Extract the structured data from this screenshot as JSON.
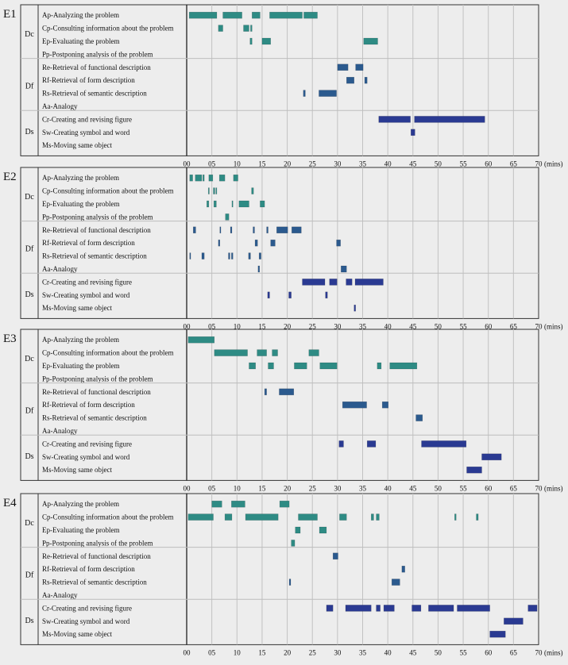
{
  "chart_data": {
    "type": "timeline",
    "xlim": [
      0,
      70
    ],
    "x_ticks": [
      "00",
      "05",
      "10",
      "15",
      "20",
      "25",
      "30",
      "35",
      "40",
      "45",
      "50",
      "55",
      "60",
      "65",
      "70"
    ],
    "x_unit": "(mins)",
    "grid": true,
    "groups": [
      {
        "label": "Dc",
        "rows": [
          "Ap-Analyzing the problem",
          "Cp-Consulting information about the problem",
          "Ep-Evaluating the problem",
          "Pp-Postponing analysis of the problem"
        ]
      },
      {
        "label": "Df",
        "rows": [
          "Re-Retrieval of functional description",
          "Rf-Retrieval of form description",
          "Rs-Retrieval of semantic description",
          "Aa-Analogy"
        ]
      },
      {
        "label": "Ds",
        "rows": [
          "Cr-Creating and revising figure",
          "Sw-Creating symbol and word",
          "Ms-Moving same object"
        ]
      }
    ],
    "colors": {
      "Dc": "#2e8b84",
      "Df": "#2b5a8e",
      "Ds": "#2a3a92"
    },
    "panels": [
      {
        "label": "E1",
        "segments": [
          [
            [
              0.5,
              6
            ],
            [
              7.2,
              11
            ],
            [
              13,
              14.6
            ],
            [
              16.5,
              23
            ],
            [
              23.3,
              26
            ]
          ],
          [
            [
              6.3,
              7.2
            ],
            [
              11.3,
              12.4
            ],
            [
              12.7,
              13
            ]
          ],
          [
            [
              12.6,
              13
            ],
            [
              15,
              16.7
            ],
            [
              35.2,
              38
            ]
          ],
          [],
          [
            [
              30,
              32.1
            ],
            [
              33.6,
              35.1
            ]
          ],
          [
            [
              31.8,
              33.3
            ],
            [
              35.4,
              35.9
            ]
          ],
          [
            [
              23.2,
              23.6
            ],
            [
              26.3,
              29.8
            ]
          ],
          [],
          [
            [
              38.2,
              44.5
            ],
            [
              45.3,
              59.3
            ]
          ],
          [
            [
              44.6,
              45.4
            ]
          ],
          []
        ]
      },
      {
        "label": "E2",
        "segments": [
          [
            [
              0.6,
              1.2
            ],
            [
              1.7,
              3
            ],
            [
              3.2,
              3.5
            ],
            [
              4.4,
              5.2
            ],
            [
              6.5,
              7.6
            ],
            [
              9.3,
              10.2
            ]
          ],
          [
            [
              4.3,
              4.5
            ],
            [
              5.3,
              5.6
            ],
            [
              5.8,
              6
            ],
            [
              12.9,
              13.3
            ]
          ],
          [
            [
              4,
              4.4
            ],
            [
              5.4,
              5.9
            ],
            [
              9,
              9.2
            ],
            [
              10.4,
              12.4
            ],
            [
              14.6,
              15.5
            ]
          ],
          [
            [
              7.7,
              8.4
            ]
          ],
          [
            [
              1.3,
              1.8
            ],
            [
              6.6,
              6.8
            ],
            [
              8.7,
              9
            ],
            [
              13.2,
              13.5
            ],
            [
              15.9,
              16.2
            ],
            [
              17.9,
              20.1
            ],
            [
              20.9,
              22.8
            ]
          ],
          [
            [
              6.3,
              6.6
            ],
            [
              13.6,
              14.1
            ],
            [
              16.7,
              17.6
            ],
            [
              29.8,
              30.6
            ]
          ],
          [
            [
              0.6,
              0.8
            ],
            [
              3,
              3.5
            ],
            [
              8.3,
              8.6
            ],
            [
              8.9,
              9.2
            ],
            [
              12.3,
              12.7
            ],
            [
              14.4,
              14.8
            ]
          ],
          [
            [
              14.2,
              14.5
            ],
            [
              30.7,
              31.8
            ]
          ],
          [
            [
              23,
              27.5
            ],
            [
              28.4,
              29.9
            ],
            [
              31.7,
              32.9
            ],
            [
              33.5,
              39.1
            ]
          ],
          [
            [
              16.1,
              16.5
            ],
            [
              20.3,
              20.8
            ],
            [
              27.6,
              28
            ]
          ],
          [
            [
              33.3,
              33.6
            ]
          ]
        ]
      },
      {
        "label": "E3",
        "segments": [
          [
            [
              0.3,
              5.5
            ]
          ],
          [
            [
              5.5,
              12.1
            ],
            [
              14,
              15.9
            ],
            [
              17,
              18.1
            ],
            [
              24.3,
              26.3
            ]
          ],
          [
            [
              12.4,
              13.7
            ],
            [
              16.2,
              17.3
            ],
            [
              21.4,
              23.9
            ],
            [
              26.5,
              29.9
            ],
            [
              37.9,
              38.7
            ],
            [
              40.4,
              45.8
            ]
          ],
          [],
          [
            [
              15.5,
              15.9
            ],
            [
              18.4,
              21.3
            ]
          ],
          [
            [
              31,
              35.8
            ],
            [
              38.9,
              40.1
            ]
          ],
          [
            [
              45.6,
              46.9
            ]
          ],
          [],
          [
            [
              30.3,
              31.2
            ],
            [
              35.9,
              37.6
            ],
            [
              46.7,
              55.6
            ]
          ],
          [
            [
              58.7,
              62.6
            ]
          ],
          [
            [
              55.7,
              58.7
            ]
          ]
        ]
      },
      {
        "label": "E4",
        "segments": [
          [
            [
              5,
              7
            ],
            [
              8.9,
              11.6
            ],
            [
              18.5,
              20.4
            ]
          ],
          [
            [
              0.3,
              5.3
            ],
            [
              7.6,
              9
            ],
            [
              11.7,
              18.2
            ],
            [
              22.2,
              26
            ],
            [
              30.4,
              31.8
            ],
            [
              36.7,
              37.2
            ],
            [
              37.7,
              38.3
            ],
            [
              53.3,
              53.6
            ],
            [
              57.6,
              58
            ]
          ],
          [
            [
              21.6,
              22.6
            ],
            [
              26.4,
              27.8
            ]
          ],
          [
            [
              20.8,
              21.5
            ]
          ],
          [
            [
              29.1,
              30.1
            ]
          ],
          [
            [
              42.8,
              43.4
            ]
          ],
          [
            [
              20.4,
              20.7
            ],
            [
              40.8,
              42.4
            ]
          ],
          [],
          [
            [
              27.8,
              29.1
            ],
            [
              31.6,
              36.7
            ],
            [
              37.7,
              38.5
            ],
            [
              39.2,
              41.3
            ],
            [
              44.8,
              46.6
            ],
            [
              48.1,
              53.1
            ],
            [
              53.8,
              60.3
            ],
            [
              67.9,
              69.7
            ]
          ],
          [
            [
              63.1,
              66.9
            ]
          ],
          [
            [
              60.3,
              63.4
            ]
          ]
        ]
      }
    ]
  }
}
